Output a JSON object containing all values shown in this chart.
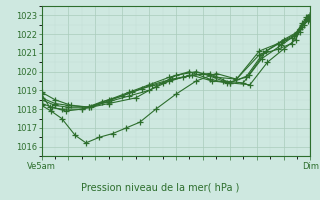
{
  "title": "Pression niveau de la mer( hPa )",
  "xlabel_left": "Ve5am",
  "xlabel_right": "Dim",
  "ylim": [
    1015.5,
    1023.5
  ],
  "yticks": [
    1016,
    1017,
    1018,
    1019,
    1020,
    1021,
    1022,
    1023
  ],
  "bg_color": "#cee8e0",
  "grid_color_major": "#aaccbb",
  "grid_color_minor": "#c0ddd5",
  "line_color": "#2d6e2d",
  "lines": [
    [
      0.0,
      1018.8,
      0.06,
      1018.1,
      0.15,
      1018.0,
      0.3,
      1018.0,
      0.5,
      1018.3,
      0.7,
      1018.6,
      0.85,
      1019.2,
      1.0,
      1019.8,
      1.15,
      1020.0,
      1.3,
      1019.7,
      1.45,
      1019.6,
      1.62,
      1021.1,
      1.76,
      1021.5,
      1.86,
      1021.8,
      1.92,
      1022.1,
      1.97,
      1022.8,
      2.0,
      1023.0
    ],
    [
      0.0,
      1018.2,
      0.07,
      1017.9,
      0.15,
      1017.5,
      0.25,
      1016.6,
      0.33,
      1016.2,
      0.43,
      1016.5,
      0.53,
      1016.7,
      0.63,
      1017.0,
      0.73,
      1017.3,
      0.85,
      1018.0,
      1.0,
      1018.8,
      1.15,
      1019.5,
      1.3,
      1019.9,
      1.45,
      1019.6,
      1.62,
      1020.9,
      1.76,
      1021.2,
      1.86,
      1021.5,
      1.92,
      1022.3,
      1.97,
      1022.9,
      2.0,
      1023.0
    ],
    [
      0.0,
      1018.5,
      0.1,
      1018.2,
      0.2,
      1018.1,
      0.35,
      1018.1,
      0.5,
      1018.4,
      0.65,
      1018.7,
      0.8,
      1019.0,
      0.95,
      1019.5,
      1.1,
      1019.8,
      1.25,
      1019.9,
      1.4,
      1019.4,
      1.55,
      1019.3,
      1.68,
      1020.5,
      1.8,
      1021.2,
      1.89,
      1021.7,
      1.94,
      1022.5,
      1.98,
      1022.8,
      2.0,
      1023.0
    ],
    [
      0.0,
      1018.3,
      0.08,
      1018.1,
      0.18,
      1017.9,
      0.3,
      1018.0,
      0.45,
      1018.4,
      0.6,
      1018.7,
      0.75,
      1019.1,
      0.9,
      1019.4,
      1.05,
      1019.7,
      1.2,
      1019.9,
      1.35,
      1019.5,
      1.5,
      1019.4,
      1.64,
      1020.7,
      1.78,
      1021.4,
      1.88,
      1021.9,
      1.94,
      1022.6,
      1.98,
      1022.9,
      2.0,
      1023.0
    ],
    [
      0.0,
      1018.6,
      0.1,
      1018.3,
      0.2,
      1018.2,
      0.35,
      1018.1,
      0.5,
      1018.5,
      0.65,
      1018.9,
      0.8,
      1019.3,
      0.95,
      1019.7,
      1.1,
      1020.0,
      1.25,
      1019.6,
      1.38,
      1019.4,
      1.52,
      1019.7,
      1.65,
      1021.0,
      1.79,
      1021.6,
      1.89,
      1022.0,
      1.94,
      1022.4,
      1.98,
      1022.7,
      2.0,
      1023.0
    ],
    [
      0.0,
      1018.9,
      0.1,
      1018.5,
      0.22,
      1018.2,
      0.37,
      1018.1,
      0.52,
      1018.5,
      0.67,
      1018.9,
      0.82,
      1019.3,
      0.97,
      1019.6,
      1.12,
      1019.8,
      1.27,
      1019.5,
      1.4,
      1019.4,
      1.54,
      1019.8,
      1.67,
      1021.1,
      1.8,
      1021.7,
      1.9,
      1022.1,
      1.95,
      1022.5,
      1.99,
      1022.8,
      2.0,
      1023.0
    ]
  ]
}
